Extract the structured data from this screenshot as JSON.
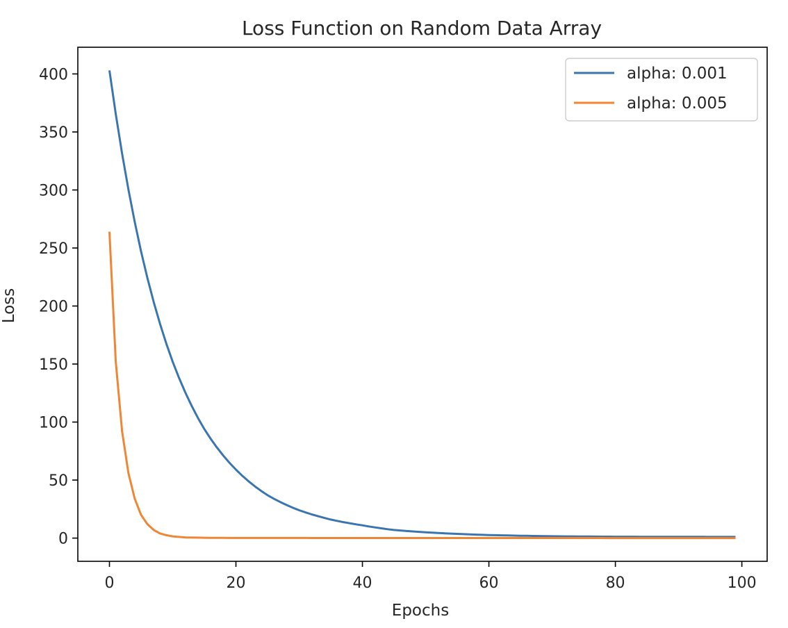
{
  "chart_data": {
    "type": "line",
    "title": "Loss Function on Random Data Array",
    "xlabel": "Epochs",
    "ylabel": "Loss",
    "xlim": [
      -5,
      104
    ],
    "ylim": [
      -20,
      423
    ],
    "xticks": [
      0,
      20,
      40,
      60,
      80,
      100
    ],
    "yticks": [
      0,
      50,
      100,
      150,
      200,
      250,
      300,
      350,
      400
    ],
    "grid": false,
    "legend_position": "top-right",
    "x_range": [
      0,
      99
    ],
    "series": [
      {
        "name": "alpha: 0.001",
        "color": "#3a75af",
        "sample_x": [
          0,
          5,
          10,
          15,
          20,
          25,
          30,
          35,
          40,
          45,
          50,
          60,
          70,
          80,
          99
        ],
        "sample_y": [
          403,
          247,
          152,
          94,
          59,
          37,
          24,
          16,
          11,
          7,
          5,
          2.6,
          1.6,
          1.2,
          1
        ]
      },
      {
        "name": "alpha: 0.005",
        "color": "#ef8636",
        "sample_x": [
          0,
          1,
          2,
          3,
          4,
          5,
          6,
          7,
          8,
          9,
          10,
          12,
          15,
          20,
          99
        ],
        "sample_y": [
          264,
          152,
          92,
          56,
          34,
          20,
          12,
          7,
          4,
          2.5,
          1.5,
          0.6,
          0.3,
          0.1,
          0
        ]
      }
    ]
  }
}
